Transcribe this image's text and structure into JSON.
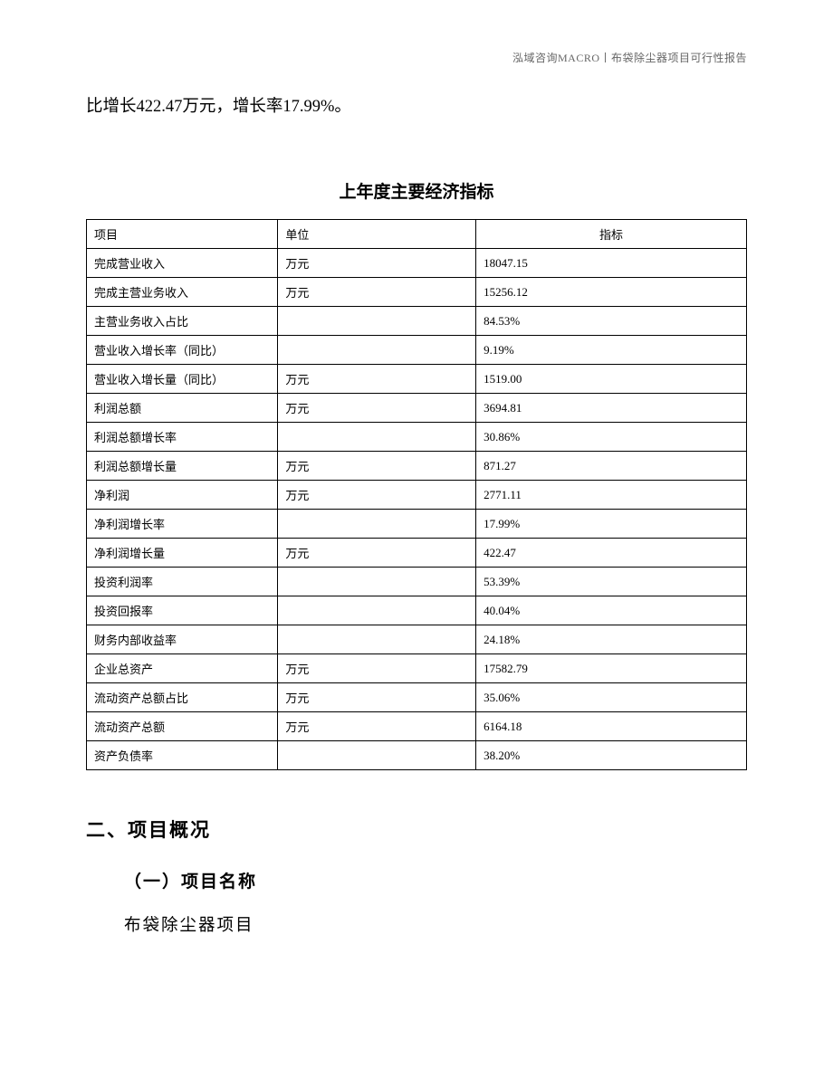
{
  "header": {
    "right_text": "泓域咨询MACRO丨布袋除尘器项目可行性报告"
  },
  "intro": "比增长422.47万元，增长率17.99%。",
  "table": {
    "title": "上年度主要经济指标",
    "columns": [
      "项目",
      "单位",
      "指标"
    ],
    "rows": [
      [
        "完成营业收入",
        "万元",
        "18047.15"
      ],
      [
        "完成主营业务收入",
        "万元",
        "15256.12"
      ],
      [
        "主营业务收入占比",
        "",
        "84.53%"
      ],
      [
        "营业收入增长率（同比）",
        "",
        "9.19%"
      ],
      [
        "营业收入增长量（同比）",
        "万元",
        "1519.00"
      ],
      [
        "利润总额",
        "万元",
        "3694.81"
      ],
      [
        "利润总额增长率",
        "",
        "30.86%"
      ],
      [
        "利润总额增长量",
        "万元",
        "871.27"
      ],
      [
        "净利润",
        "万元",
        "2771.11"
      ],
      [
        "净利润增长率",
        "",
        "17.99%"
      ],
      [
        "净利润增长量",
        "万元",
        "422.47"
      ],
      [
        "投资利润率",
        "",
        "53.39%"
      ],
      [
        "投资回报率",
        "",
        "40.04%"
      ],
      [
        "财务内部收益率",
        "",
        "24.18%"
      ],
      [
        "企业总资产",
        "万元",
        "17582.79"
      ],
      [
        "流动资产总额占比",
        "万元",
        "35.06%"
      ],
      [
        "流动资产总额",
        "万元",
        "6164.18"
      ],
      [
        "资产负债率",
        "",
        "38.20%"
      ]
    ]
  },
  "section2": {
    "heading": "二、项目概况",
    "subheading": "（一）项目名称",
    "body": "布袋除尘器项目"
  }
}
